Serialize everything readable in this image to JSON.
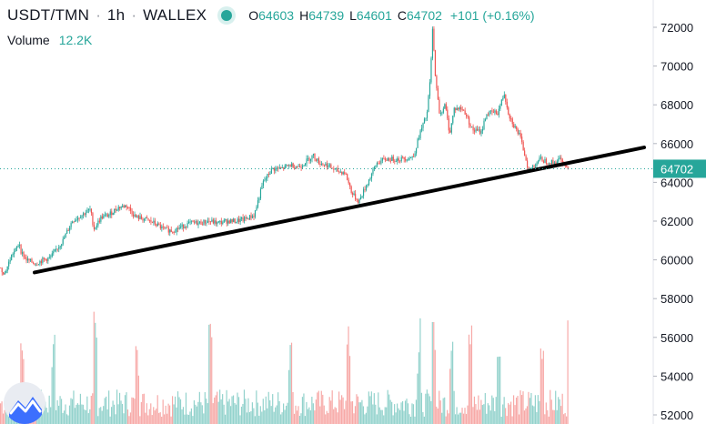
{
  "header": {
    "symbol": "USDT/TMN",
    "interval": "1h",
    "exchange": "WALLEX",
    "separator": "·",
    "ohlc": {
      "open_label": "O",
      "open": "64603",
      "high_label": "H",
      "high": "64739",
      "low_label": "L",
      "low": "64601",
      "close_label": "C",
      "close": "64702",
      "change": "+101 (+0.16%)"
    }
  },
  "volume": {
    "label": "Volume",
    "value": "12.2K"
  },
  "colors": {
    "up": "#26a69a",
    "down": "#ef5350",
    "trendline": "#000000",
    "last_price": "#26a69a"
  },
  "icons": {
    "status": "live-dot-icon",
    "logo": "tradingview-logo-icon"
  },
  "chart_data": {
    "type": "candlestick",
    "title": "USDT/TMN · 1h · WALLEX",
    "y_axis": {
      "ticks": [
        72000,
        70000,
        68000,
        66000,
        64000,
        62000,
        60000,
        58000,
        56000,
        54000,
        52000
      ],
      "range": [
        51700,
        72700
      ],
      "position": "right"
    },
    "last_price": 64702,
    "candle_count": 420,
    "price_path": [
      [
        0,
        59600
      ],
      [
        6,
        59300
      ],
      [
        14,
        60300
      ],
      [
        18,
        60500
      ],
      [
        22,
        60900
      ],
      [
        24,
        60400
      ],
      [
        30,
        60000
      ],
      [
        40,
        59800
      ],
      [
        48,
        60000
      ],
      [
        56,
        60100
      ],
      [
        62,
        60500
      ],
      [
        70,
        61000
      ],
      [
        80,
        62000
      ],
      [
        90,
        62300
      ],
      [
        100,
        62600
      ],
      [
        104,
        61600
      ],
      [
        112,
        62200
      ],
      [
        120,
        62300
      ],
      [
        130,
        62700
      ],
      [
        140,
        62800
      ],
      [
        150,
        62200
      ],
      [
        160,
        62100
      ],
      [
        170,
        61900
      ],
      [
        180,
        61600
      ],
      [
        190,
        61500
      ],
      [
        200,
        61700
      ],
      [
        210,
        61900
      ],
      [
        220,
        61900
      ],
      [
        230,
        62000
      ],
      [
        240,
        61900
      ],
      [
        250,
        62000
      ],
      [
        260,
        62000
      ],
      [
        270,
        62100
      ],
      [
        280,
        62300
      ],
      [
        290,
        64000
      ],
      [
        300,
        64700
      ],
      [
        310,
        64700
      ],
      [
        320,
        64900
      ],
      [
        330,
        64800
      ],
      [
        345,
        65400
      ],
      [
        352,
        65000
      ],
      [
        360,
        64900
      ],
      [
        370,
        64600
      ],
      [
        380,
        64500
      ],
      [
        388,
        63400
      ],
      [
        395,
        63000
      ],
      [
        405,
        64000
      ],
      [
        415,
        65000
      ],
      [
        425,
        65200
      ],
      [
        440,
        65200
      ],
      [
        455,
        65300
      ],
      [
        462,
        66500
      ],
      [
        470,
        67500
      ],
      [
        474,
        69500
      ],
      [
        476,
        72000
      ],
      [
        480,
        69000
      ],
      [
        484,
        67500
      ],
      [
        490,
        68000
      ],
      [
        495,
        66500
      ],
      [
        500,
        67800
      ],
      [
        508,
        67800
      ],
      [
        512,
        67600
      ],
      [
        520,
        66700
      ],
      [
        530,
        66600
      ],
      [
        535,
        67500
      ],
      [
        540,
        67600
      ],
      [
        548,
        67600
      ],
      [
        555,
        68600
      ],
      [
        560,
        67500
      ],
      [
        566,
        66900
      ],
      [
        572,
        66400
      ],
      [
        576,
        65700
      ],
      [
        582,
        64600
      ],
      [
        588,
        64900
      ],
      [
        594,
        65200
      ],
      [
        600,
        65100
      ],
      [
        610,
        65000
      ],
      [
        616,
        65200
      ],
      [
        620,
        65000
      ],
      [
        625,
        64700
      ]
    ],
    "trendline": {
      "start": {
        "x_index": 38,
        "price": 59350
      },
      "end": {
        "x_index": 708,
        "price": 65800
      }
    },
    "volume_series": {
      "peak_positions": [
        24,
        58,
        104,
        150,
        230,
        318,
        383,
        460,
        476,
        495,
        516,
        548,
        595,
        625
      ]
    }
  }
}
